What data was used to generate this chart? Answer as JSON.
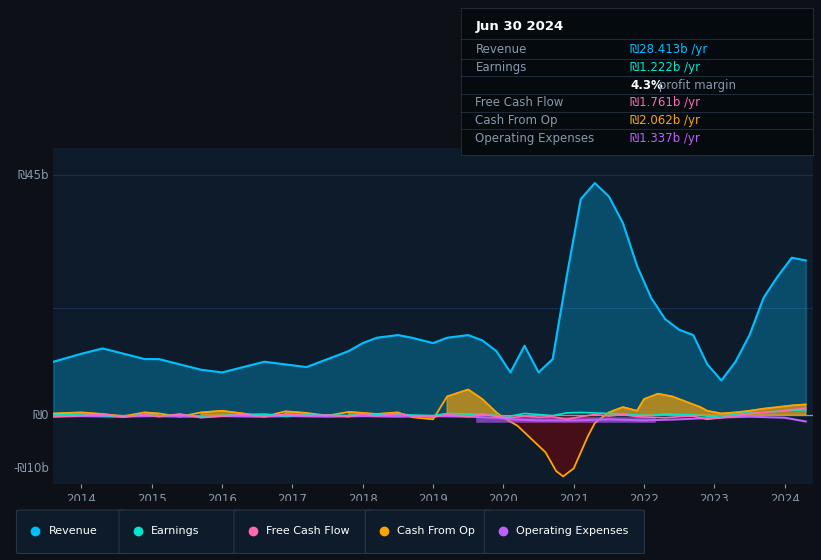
{
  "bg_color": "#0d1117",
  "chart_bg": "#0d1b2a",
  "title_date": "Jun 30 2024",
  "info_box": {
    "Revenue": {
      "value": "₪28.413b",
      "color": "#00bfff"
    },
    "Earnings": {
      "value": "₪1.222b",
      "color": "#00e5cc"
    },
    "profit_margin": "4.3%",
    "Free Cash Flow": {
      "value": "₪1.761b",
      "color": "#ff69b4"
    },
    "Cash From Op": {
      "value": "₪2.062b",
      "color": "#ffa500"
    },
    "Operating Expenses": {
      "value": "₪1.337b",
      "color": "#bf5fff"
    }
  },
  "ylabel_top": "₪45b",
  "ylabel_zero": "₪0",
  "ylabel_bottom": "-₪10b",
  "ylim": [
    -13,
    50
  ],
  "legend": [
    {
      "label": "Revenue",
      "color": "#00bfff"
    },
    {
      "label": "Earnings",
      "color": "#00e5cc"
    },
    {
      "label": "Free Cash Flow",
      "color": "#ff69b4"
    },
    {
      "label": "Cash From Op",
      "color": "#ffa500"
    },
    {
      "label": "Operating Expenses",
      "color": "#bf5fff"
    }
  ],
  "x_ticks": [
    2014,
    2015,
    2016,
    2017,
    2018,
    2019,
    2020,
    2021,
    2022,
    2023,
    2024
  ],
  "revenue": {
    "x": [
      2013.6,
      2014.0,
      2014.3,
      2014.6,
      2014.9,
      2015.1,
      2015.4,
      2015.7,
      2016.0,
      2016.3,
      2016.6,
      2016.9,
      2017.2,
      2017.5,
      2017.8,
      2018.0,
      2018.2,
      2018.5,
      2018.7,
      2019.0,
      2019.2,
      2019.5,
      2019.7,
      2019.9,
      2020.1,
      2020.3,
      2020.5,
      2020.7,
      2020.9,
      2021.1,
      2021.3,
      2021.5,
      2021.7,
      2021.9,
      2022.1,
      2022.3,
      2022.5,
      2022.7,
      2022.9,
      2023.1,
      2023.3,
      2023.5,
      2023.7,
      2023.9,
      2024.1,
      2024.3
    ],
    "y": [
      10.0,
      11.5,
      12.5,
      11.5,
      10.5,
      10.5,
      9.5,
      8.5,
      8.0,
      9.0,
      10.0,
      9.5,
      9.0,
      10.5,
      12.0,
      13.5,
      14.5,
      15.0,
      14.5,
      13.5,
      14.5,
      15.0,
      14.0,
      12.0,
      8.0,
      13.0,
      8.0,
      10.5,
      26.0,
      40.5,
      43.5,
      41.0,
      36.0,
      28.0,
      22.0,
      18.0,
      16.0,
      15.0,
      9.5,
      6.5,
      10.0,
      15.0,
      22.0,
      26.0,
      29.5,
      29.0
    ]
  },
  "earnings": {
    "x": [
      2013.6,
      2014.0,
      2014.3,
      2014.6,
      2014.9,
      2015.1,
      2015.4,
      2015.7,
      2016.0,
      2016.3,
      2016.6,
      2016.9,
      2017.2,
      2017.5,
      2017.8,
      2018.0,
      2018.2,
      2018.5,
      2018.7,
      2019.0,
      2019.2,
      2019.5,
      2019.7,
      2019.9,
      2020.1,
      2020.3,
      2020.5,
      2020.7,
      2020.9,
      2021.1,
      2021.3,
      2021.5,
      2021.7,
      2021.9,
      2022.1,
      2022.3,
      2022.5,
      2022.7,
      2022.9,
      2023.1,
      2023.3,
      2023.5,
      2023.7,
      2023.9,
      2024.1,
      2024.3
    ],
    "y": [
      0.0,
      0.2,
      -0.1,
      -0.3,
      0.1,
      -0.2,
      0.1,
      -0.3,
      -0.1,
      0.1,
      0.2,
      -0.2,
      0.1,
      0.0,
      -0.1,
      0.2,
      0.1,
      0.2,
      0.0,
      -0.1,
      0.3,
      0.2,
      0.1,
      -0.1,
      -0.2,
      0.3,
      0.1,
      -0.1,
      0.4,
      0.5,
      0.4,
      0.3,
      0.2,
      0.0,
      -0.1,
      0.2,
      0.1,
      0.0,
      -0.2,
      -0.4,
      0.2,
      0.4,
      0.5,
      0.7,
      0.9,
      1.0
    ]
  },
  "free_cash_flow": {
    "x": [
      2013.6,
      2014.0,
      2014.3,
      2014.6,
      2014.9,
      2015.1,
      2015.4,
      2015.7,
      2016.0,
      2016.3,
      2016.6,
      2016.9,
      2017.2,
      2017.5,
      2017.8,
      2018.0,
      2018.2,
      2018.5,
      2018.7,
      2019.0,
      2019.2,
      2019.5,
      2019.7,
      2019.9,
      2020.1,
      2020.3,
      2020.5,
      2020.7,
      2020.9,
      2021.1,
      2021.3,
      2021.5,
      2021.7,
      2021.9,
      2022.1,
      2022.3,
      2022.5,
      2022.7,
      2022.9,
      2023.1,
      2023.3,
      2023.5,
      2023.7,
      2023.9,
      2024.1,
      2024.3
    ],
    "y": [
      -0.3,
      -0.1,
      0.2,
      -0.4,
      0.1,
      -0.3,
      0.2,
      -0.5,
      -0.2,
      0.1,
      -0.3,
      0.2,
      -0.1,
      0.0,
      -0.3,
      0.2,
      -0.2,
      0.3,
      -0.2,
      -0.4,
      0.1,
      -0.3,
      0.2,
      -0.3,
      -0.5,
      -0.2,
      -0.4,
      -0.3,
      -0.8,
      -0.3,
      0.1,
      -0.2,
      0.1,
      -0.3,
      -0.4,
      -0.5,
      -0.3,
      -0.2,
      -0.8,
      -0.5,
      -0.2,
      0.3,
      0.5,
      0.7,
      1.0,
      1.3
    ]
  },
  "cash_from_op": {
    "x": [
      2013.6,
      2014.0,
      2014.3,
      2014.6,
      2014.9,
      2015.1,
      2015.4,
      2015.7,
      2016.0,
      2016.3,
      2016.6,
      2016.9,
      2017.2,
      2017.5,
      2017.8,
      2018.0,
      2018.2,
      2018.5,
      2018.7,
      2019.0,
      2019.2,
      2019.5,
      2019.7,
      2019.9,
      2020.0,
      2020.2,
      2020.4,
      2020.6,
      2020.75,
      2020.85,
      2021.0,
      2021.1,
      2021.2,
      2021.3,
      2021.5,
      2021.7,
      2021.9,
      2022.0,
      2022.2,
      2022.4,
      2022.6,
      2022.8,
      2022.9,
      2023.1,
      2023.3,
      2023.5,
      2023.7,
      2023.9,
      2024.1,
      2024.3
    ],
    "y": [
      0.3,
      0.5,
      0.2,
      -0.2,
      0.5,
      0.3,
      -0.3,
      0.5,
      0.8,
      0.3,
      -0.3,
      0.7,
      0.4,
      -0.1,
      0.6,
      0.4,
      0.2,
      0.5,
      -0.4,
      -0.8,
      3.5,
      4.8,
      3.0,
      0.5,
      -0.5,
      -2.0,
      -4.5,
      -7.0,
      -10.5,
      -11.5,
      -10.0,
      -7.0,
      -4.0,
      -1.5,
      0.5,
      1.5,
      0.8,
      3.0,
      4.0,
      3.5,
      2.5,
      1.5,
      0.8,
      0.3,
      0.5,
      0.8,
      1.2,
      1.5,
      1.8,
      2.0
    ]
  },
  "operating_expenses": {
    "x": [
      2013.6,
      2014.0,
      2014.5,
      2015.0,
      2015.5,
      2016.0,
      2016.5,
      2017.0,
      2017.5,
      2018.0,
      2018.5,
      2019.0,
      2019.5,
      2019.9,
      2020.1,
      2020.5,
      2021.0,
      2021.5,
      2022.0,
      2022.5,
      2023.0,
      2023.5,
      2024.0,
      2024.3
    ],
    "y": [
      -0.3,
      -0.2,
      -0.3,
      -0.2,
      -0.3,
      -0.2,
      -0.3,
      -0.2,
      -0.3,
      -0.2,
      -0.3,
      -0.2,
      -0.3,
      -0.5,
      -0.8,
      -1.0,
      -1.0,
      -0.8,
      -1.0,
      -0.8,
      -0.5,
      -0.3,
      -0.5,
      -1.2
    ]
  }
}
